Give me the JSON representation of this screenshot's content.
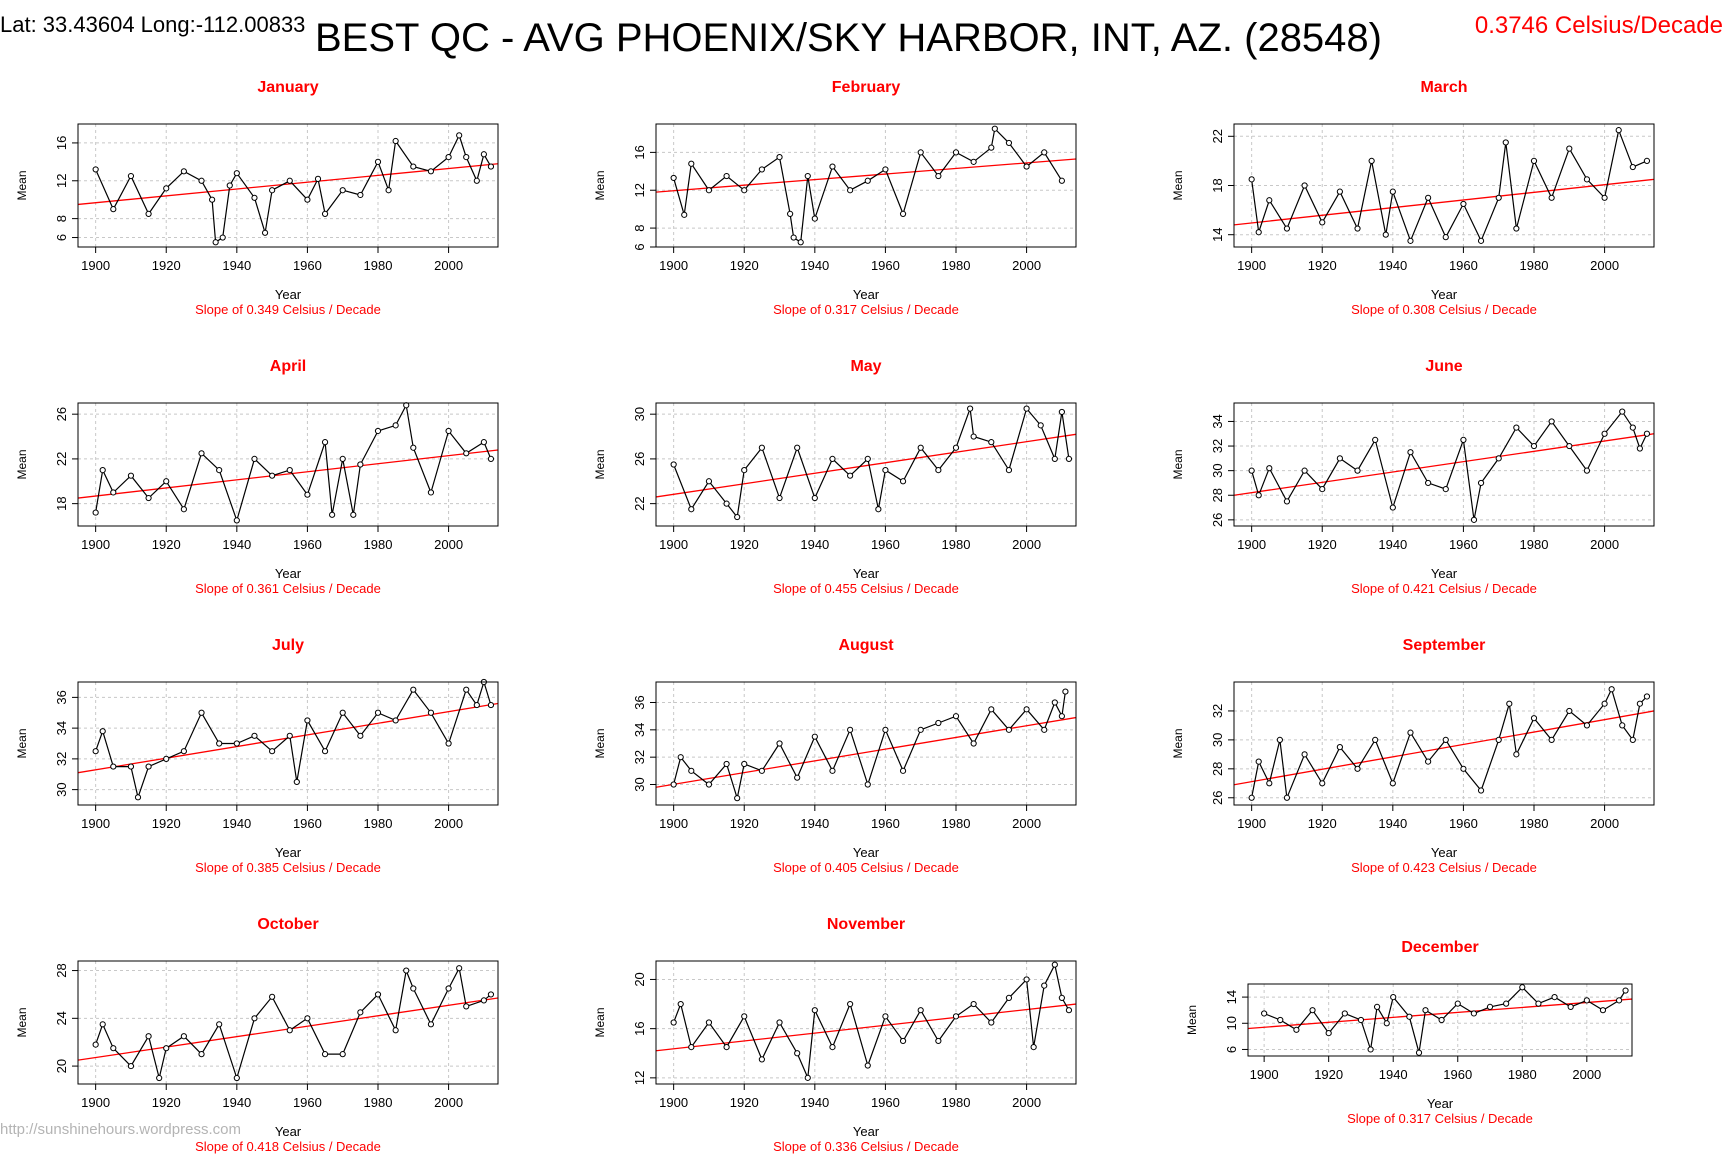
{
  "header": {
    "latlong": "Lat: 33.43604  Long:-112.00833",
    "title": "BEST QC - AVG PHOENIX/SKY HARBOR,  INT, AZ. (28548)",
    "overall_slope": "0.3746 Celsius/Decade"
  },
  "watermark": "http://sunshinehours.wordpress.com",
  "colors": {
    "title": "#ff0000",
    "trend": "#ff0000",
    "series": "#000000",
    "grid": "#c8c8c8"
  },
  "chart_data": [
    {
      "type": "line",
      "title": "January",
      "xlabel": "Year",
      "ylabel": "Mean",
      "slope_label": "Slope of 0.349  Celsius / Decade",
      "xlim": [
        1895,
        2014
      ],
      "ylim": [
        5,
        18
      ],
      "xticks": [
        1900,
        1920,
        1940,
        1960,
        1980,
        2000
      ],
      "yticks": [
        6,
        8,
        12,
        16
      ],
      "series": [
        {
          "x": [
            1900,
            1905,
            1910,
            1915,
            1920,
            1925,
            1930,
            1933,
            1934,
            1936,
            1938,
            1940,
            1945,
            1948,
            1950,
            1955,
            1960,
            1963,
            1965,
            1970,
            1975,
            1980,
            1983,
            1985,
            1990,
            1995,
            2000,
            2003,
            2005,
            2008,
            2010,
            2012
          ],
          "y": [
            13.2,
            9.0,
            12.5,
            8.5,
            11.2,
            13.0,
            12.0,
            10.0,
            5.5,
            6.0,
            11.5,
            12.8,
            10.2,
            6.5,
            11.0,
            12.0,
            10.0,
            12.2,
            8.5,
            11.0,
            10.5,
            14.0,
            11.0,
            16.2,
            13.5,
            13.0,
            14.5,
            16.8,
            14.5,
            12.0,
            14.8,
            13.5
          ]
        }
      ],
      "trend": {
        "y_start": 9.5,
        "y_end": 13.8
      }
    },
    {
      "type": "line",
      "title": "February",
      "xlabel": "Year",
      "ylabel": "Mean",
      "slope_label": "Slope of 0.317  Celsius / Decade",
      "xlim": [
        1895,
        2014
      ],
      "ylim": [
        6,
        19
      ],
      "xticks": [
        1900,
        1920,
        1940,
        1960,
        1980,
        2000
      ],
      "yticks": [
        6,
        8,
        12,
        16
      ],
      "series": [
        {
          "x": [
            1900,
            1903,
            1905,
            1910,
            1915,
            1920,
            1925,
            1930,
            1933,
            1934,
            1936,
            1938,
            1940,
            1945,
            1950,
            1955,
            1960,
            1965,
            1970,
            1975,
            1980,
            1985,
            1990,
            1991,
            1995,
            2000,
            2005,
            2010
          ],
          "y": [
            13.3,
            9.4,
            14.8,
            12.0,
            13.5,
            12.0,
            14.2,
            15.5,
            9.5,
            7.0,
            6.5,
            13.5,
            9.0,
            14.5,
            12.0,
            13.0,
            14.2,
            9.5,
            16.0,
            13.5,
            16.0,
            15.0,
            16.5,
            18.5,
            17.0,
            14.5,
            16.0,
            13.0
          ]
        }
      ],
      "trend": {
        "y_start": 11.8,
        "y_end": 15.3
      }
    },
    {
      "type": "line",
      "title": "March",
      "xlabel": "Year",
      "ylabel": "Mean",
      "slope_label": "Slope of 0.308  Celsius / Decade",
      "xlim": [
        1895,
        2014
      ],
      "ylim": [
        13,
        23
      ],
      "xticks": [
        1900,
        1920,
        1940,
        1960,
        1980,
        2000
      ],
      "yticks": [
        14,
        18,
        22
      ],
      "series": [
        {
          "x": [
            1900,
            1902,
            1905,
            1910,
            1915,
            1920,
            1925,
            1930,
            1934,
            1938,
            1940,
            1945,
            1950,
            1955,
            1960,
            1965,
            1970,
            1972,
            1975,
            1980,
            1985,
            1990,
            1995,
            2000,
            2004,
            2008,
            2012
          ],
          "y": [
            18.5,
            14.2,
            16.8,
            14.5,
            18.0,
            15.0,
            17.5,
            14.5,
            20.0,
            14.0,
            17.5,
            13.5,
            17.0,
            13.8,
            16.5,
            13.5,
            17.0,
            21.5,
            14.5,
            20.0,
            17.0,
            21.0,
            18.5,
            17.0,
            22.5,
            19.5,
            20.0
          ]
        }
      ],
      "trend": {
        "y_start": 14.8,
        "y_end": 18.5
      }
    },
    {
      "type": "line",
      "title": "April",
      "xlabel": "Year",
      "ylabel": "Mean",
      "slope_label": "Slope of 0.361  Celsius / Decade",
      "xlim": [
        1895,
        2014
      ],
      "ylim": [
        16,
        27
      ],
      "xticks": [
        1900,
        1920,
        1940,
        1960,
        1980,
        2000
      ],
      "yticks": [
        18,
        22,
        26
      ],
      "series": [
        {
          "x": [
            1900,
            1902,
            1905,
            1910,
            1915,
            1920,
            1925,
            1930,
            1935,
            1940,
            1945,
            1950,
            1955,
            1960,
            1965,
            1967,
            1970,
            1973,
            1975,
            1980,
            1985,
            1988,
            1990,
            1995,
            2000,
            2005,
            2010,
            2012
          ],
          "y": [
            17.2,
            21.0,
            19.0,
            20.5,
            18.5,
            20.0,
            17.5,
            22.5,
            21.0,
            16.5,
            22.0,
            20.5,
            21.0,
            18.8,
            23.5,
            17.0,
            22.0,
            17.0,
            21.5,
            24.5,
            25.0,
            26.8,
            23.0,
            19.0,
            24.5,
            22.5,
            23.5,
            22.0
          ]
        }
      ],
      "trend": {
        "y_start": 18.5,
        "y_end": 22.8
      }
    },
    {
      "type": "line",
      "title": "May",
      "xlabel": "Year",
      "ylabel": "Mean",
      "slope_label": "Slope of 0.455  Celsius / Decade",
      "xlim": [
        1895,
        2014
      ],
      "ylim": [
        20,
        31
      ],
      "xticks": [
        1900,
        1920,
        1940,
        1960,
        1980,
        2000
      ],
      "yticks": [
        22,
        26,
        30
      ],
      "series": [
        {
          "x": [
            1900,
            1905,
            1910,
            1915,
            1918,
            1920,
            1925,
            1930,
            1935,
            1940,
            1945,
            1950,
            1955,
            1958,
            1960,
            1965,
            1970,
            1975,
            1980,
            1984,
            1985,
            1990,
            1995,
            2000,
            2004,
            2008,
            2010,
            2012
          ],
          "y": [
            25.5,
            21.5,
            24.0,
            22.0,
            20.8,
            25.0,
            27.0,
            22.5,
            27.0,
            22.5,
            26.0,
            24.5,
            26.0,
            21.5,
            25.0,
            24.0,
            27.0,
            25.0,
            27.0,
            30.5,
            28.0,
            27.5,
            25.0,
            30.5,
            29.0,
            26.0,
            30.2,
            26.0
          ]
        }
      ],
      "trend": {
        "y_start": 22.6,
        "y_end": 28.2
      }
    },
    {
      "type": "line",
      "title": "June",
      "xlabel": "Year",
      "ylabel": "Mean",
      "slope_label": "Slope of 0.421  Celsius / Decade",
      "xlim": [
        1895,
        2014
      ],
      "ylim": [
        25.5,
        35.5
      ],
      "xticks": [
        1900,
        1920,
        1940,
        1960,
        1980,
        2000
      ],
      "yticks": [
        26,
        28,
        30,
        32,
        34
      ],
      "series": [
        {
          "x": [
            1900,
            1902,
            1905,
            1910,
            1915,
            1920,
            1925,
            1930,
            1935,
            1940,
            1945,
            1950,
            1955,
            1960,
            1963,
            1965,
            1970,
            1975,
            1980,
            1985,
            1990,
            1995,
            2000,
            2005,
            2008,
            2010,
            2012
          ],
          "y": [
            30.0,
            28.0,
            30.2,
            27.5,
            30.0,
            28.5,
            31.0,
            30.0,
            32.5,
            27.0,
            31.5,
            29.0,
            28.5,
            32.5,
            26.0,
            29.0,
            31.0,
            33.5,
            32.0,
            34.0,
            32.0,
            30.0,
            33.0,
            34.8,
            33.5,
            31.8,
            33.0
          ]
        }
      ],
      "trend": {
        "y_start": 28.0,
        "y_end": 33.0
      }
    },
    {
      "type": "line",
      "title": "July",
      "xlabel": "Year",
      "ylabel": "Mean",
      "slope_label": "Slope of 0.385  Celsius / Decade",
      "xlim": [
        1895,
        2014
      ],
      "ylim": [
        29,
        37
      ],
      "xticks": [
        1900,
        1920,
        1940,
        1960,
        1980,
        2000
      ],
      "yticks": [
        30,
        32,
        34,
        36
      ],
      "series": [
        {
          "x": [
            1900,
            1902,
            1905,
            1910,
            1912,
            1915,
            1920,
            1925,
            1930,
            1935,
            1940,
            1945,
            1950,
            1955,
            1957,
            1960,
            1965,
            1970,
            1975,
            1980,
            1985,
            1990,
            1995,
            2000,
            2005,
            2008,
            2010,
            2012
          ],
          "y": [
            32.5,
            33.8,
            31.5,
            31.5,
            29.5,
            31.5,
            32.0,
            32.5,
            35.0,
            33.0,
            33.0,
            33.5,
            32.5,
            33.5,
            30.5,
            34.5,
            32.5,
            35.0,
            33.5,
            35.0,
            34.5,
            36.5,
            35.0,
            33.0,
            36.5,
            35.5,
            37.0,
            35.5
          ]
        }
      ],
      "trend": {
        "y_start": 31.1,
        "y_end": 35.6
      }
    },
    {
      "type": "line",
      "title": "August",
      "xlabel": "Year",
      "ylabel": "Mean",
      "slope_label": "Slope of 0.405  Celsius / Decade",
      "xlim": [
        1895,
        2014
      ],
      "ylim": [
        28.5,
        37.5
      ],
      "xticks": [
        1900,
        1920,
        1940,
        1960,
        1980,
        2000
      ],
      "yticks": [
        30,
        32,
        34,
        36
      ],
      "series": [
        {
          "x": [
            1900,
            1902,
            1905,
            1910,
            1915,
            1918,
            1920,
            1925,
            1930,
            1935,
            1940,
            1945,
            1950,
            1955,
            1960,
            1965,
            1970,
            1975,
            1980,
            1985,
            1990,
            1995,
            2000,
            2005,
            2008,
            2010,
            2011
          ],
          "y": [
            30.0,
            32.0,
            31.0,
            30.0,
            31.5,
            29.0,
            31.5,
            31.0,
            33.0,
            30.5,
            33.5,
            31.0,
            34.0,
            30.0,
            34.0,
            31.0,
            34.0,
            34.5,
            35.0,
            33.0,
            35.5,
            34.0,
            35.5,
            34.0,
            36.0,
            35.0,
            36.8
          ]
        }
      ],
      "trend": {
        "y_start": 29.8,
        "y_end": 34.9
      }
    },
    {
      "type": "line",
      "title": "September",
      "xlabel": "Year",
      "ylabel": "Mean",
      "slope_label": "Slope of 0.423  Celsius / Decade",
      "xlim": [
        1895,
        2014
      ],
      "ylim": [
        25.5,
        34
      ],
      "xticks": [
        1900,
        1920,
        1940,
        1960,
        1980,
        2000
      ],
      "yticks": [
        26,
        28,
        30,
        32
      ],
      "series": [
        {
          "x": [
            1900,
            1902,
            1905,
            1908,
            1910,
            1915,
            1920,
            1925,
            1930,
            1935,
            1940,
            1945,
            1950,
            1955,
            1960,
            1965,
            1970,
            1973,
            1975,
            1980,
            1985,
            1990,
            1995,
            2000,
            2002,
            2005,
            2008,
            2010,
            2012
          ],
          "y": [
            26.0,
            28.5,
            27.0,
            30.0,
            26.0,
            29.0,
            27.0,
            29.5,
            28.0,
            30.0,
            27.0,
            30.5,
            28.5,
            30.0,
            28.0,
            26.5,
            30.0,
            32.5,
            29.0,
            31.5,
            30.0,
            32.0,
            31.0,
            32.5,
            33.5,
            31.0,
            30.0,
            32.5,
            33.0
          ]
        }
      ],
      "trend": {
        "y_start": 26.9,
        "y_end": 32.0
      }
    },
    {
      "type": "line",
      "title": "October",
      "xlabel": "Year",
      "ylabel": "Mean",
      "slope_label": "Slope of 0.418  Celsius / Decade",
      "xlim": [
        1895,
        2014
      ],
      "ylim": [
        18.5,
        28.8
      ],
      "xticks": [
        1900,
        1920,
        1940,
        1960,
        1980,
        2000
      ],
      "yticks": [
        20,
        24,
        28
      ],
      "series": [
        {
          "x": [
            1900,
            1902,
            1905,
            1910,
            1915,
            1918,
            1920,
            1925,
            1930,
            1935,
            1940,
            1945,
            1950,
            1955,
            1960,
            1965,
            1970,
            1975,
            1980,
            1985,
            1988,
            1990,
            1995,
            2000,
            2003,
            2005,
            2010,
            2012
          ],
          "y": [
            21.8,
            23.5,
            21.5,
            20.0,
            22.5,
            19.0,
            21.5,
            22.5,
            21.0,
            23.5,
            19.0,
            24.0,
            25.8,
            23.0,
            24.0,
            21.0,
            21.0,
            24.5,
            26.0,
            23.0,
            28.0,
            26.5,
            23.5,
            26.5,
            28.2,
            25.0,
            25.5,
            26.0
          ]
        }
      ],
      "trend": {
        "y_start": 20.5,
        "y_end": 25.7
      }
    },
    {
      "type": "line",
      "title": "November",
      "xlabel": "Year",
      "ylabel": "Mean",
      "slope_label": "Slope of 0.336  Celsius / Decade",
      "xlim": [
        1895,
        2014
      ],
      "ylim": [
        11.5,
        21.5
      ],
      "xticks": [
        1900,
        1920,
        1940,
        1960,
        1980,
        2000
      ],
      "yticks": [
        12,
        16,
        20
      ],
      "series": [
        {
          "x": [
            1900,
            1902,
            1905,
            1910,
            1915,
            1920,
            1925,
            1930,
            1935,
            1938,
            1940,
            1945,
            1950,
            1955,
            1960,
            1965,
            1970,
            1975,
            1980,
            1985,
            1990,
            1995,
            2000,
            2002,
            2005,
            2008,
            2010,
            2012
          ],
          "y": [
            16.5,
            18.0,
            14.5,
            16.5,
            14.5,
            17.0,
            13.5,
            16.5,
            14.0,
            12.0,
            17.5,
            14.5,
            18.0,
            13.0,
            17.0,
            15.0,
            17.5,
            15.0,
            17.0,
            18.0,
            16.5,
            18.5,
            20.0,
            14.5,
            19.5,
            21.2,
            18.5,
            17.5
          ]
        }
      ],
      "trend": {
        "y_start": 14.2,
        "y_end": 18.0
      }
    },
    {
      "type": "line",
      "title": "December",
      "xlabel": "Year",
      "ylabel": "Mean",
      "slope_label": "Slope of 0.317  Celsius / Decade",
      "xlim": [
        1895,
        2014
      ],
      "ylim": [
        5,
        16
      ],
      "xticks": [
        1900,
        1920,
        1940,
        1960,
        1980,
        2000
      ],
      "yticks": [
        6,
        10,
        14
      ],
      "series": [
        {
          "x": [
            1900,
            1905,
            1910,
            1915,
            1920,
            1925,
            1930,
            1933,
            1935,
            1938,
            1940,
            1945,
            1948,
            1950,
            1955,
            1960,
            1965,
            1970,
            1975,
            1980,
            1985,
            1990,
            1995,
            2000,
            2005,
            2010,
            2012
          ],
          "y": [
            11.5,
            10.5,
            9.0,
            12.0,
            8.5,
            11.5,
            10.5,
            6.0,
            12.5,
            10.0,
            14.0,
            11.0,
            5.5,
            12.0,
            10.5,
            13.0,
            11.5,
            12.5,
            13.0,
            15.5,
            13.0,
            14.0,
            12.5,
            13.5,
            12.0,
            13.5,
            15.0
          ]
        }
      ],
      "trend": {
        "y_start": 9.2,
        "y_end": 13.7
      }
    }
  ]
}
